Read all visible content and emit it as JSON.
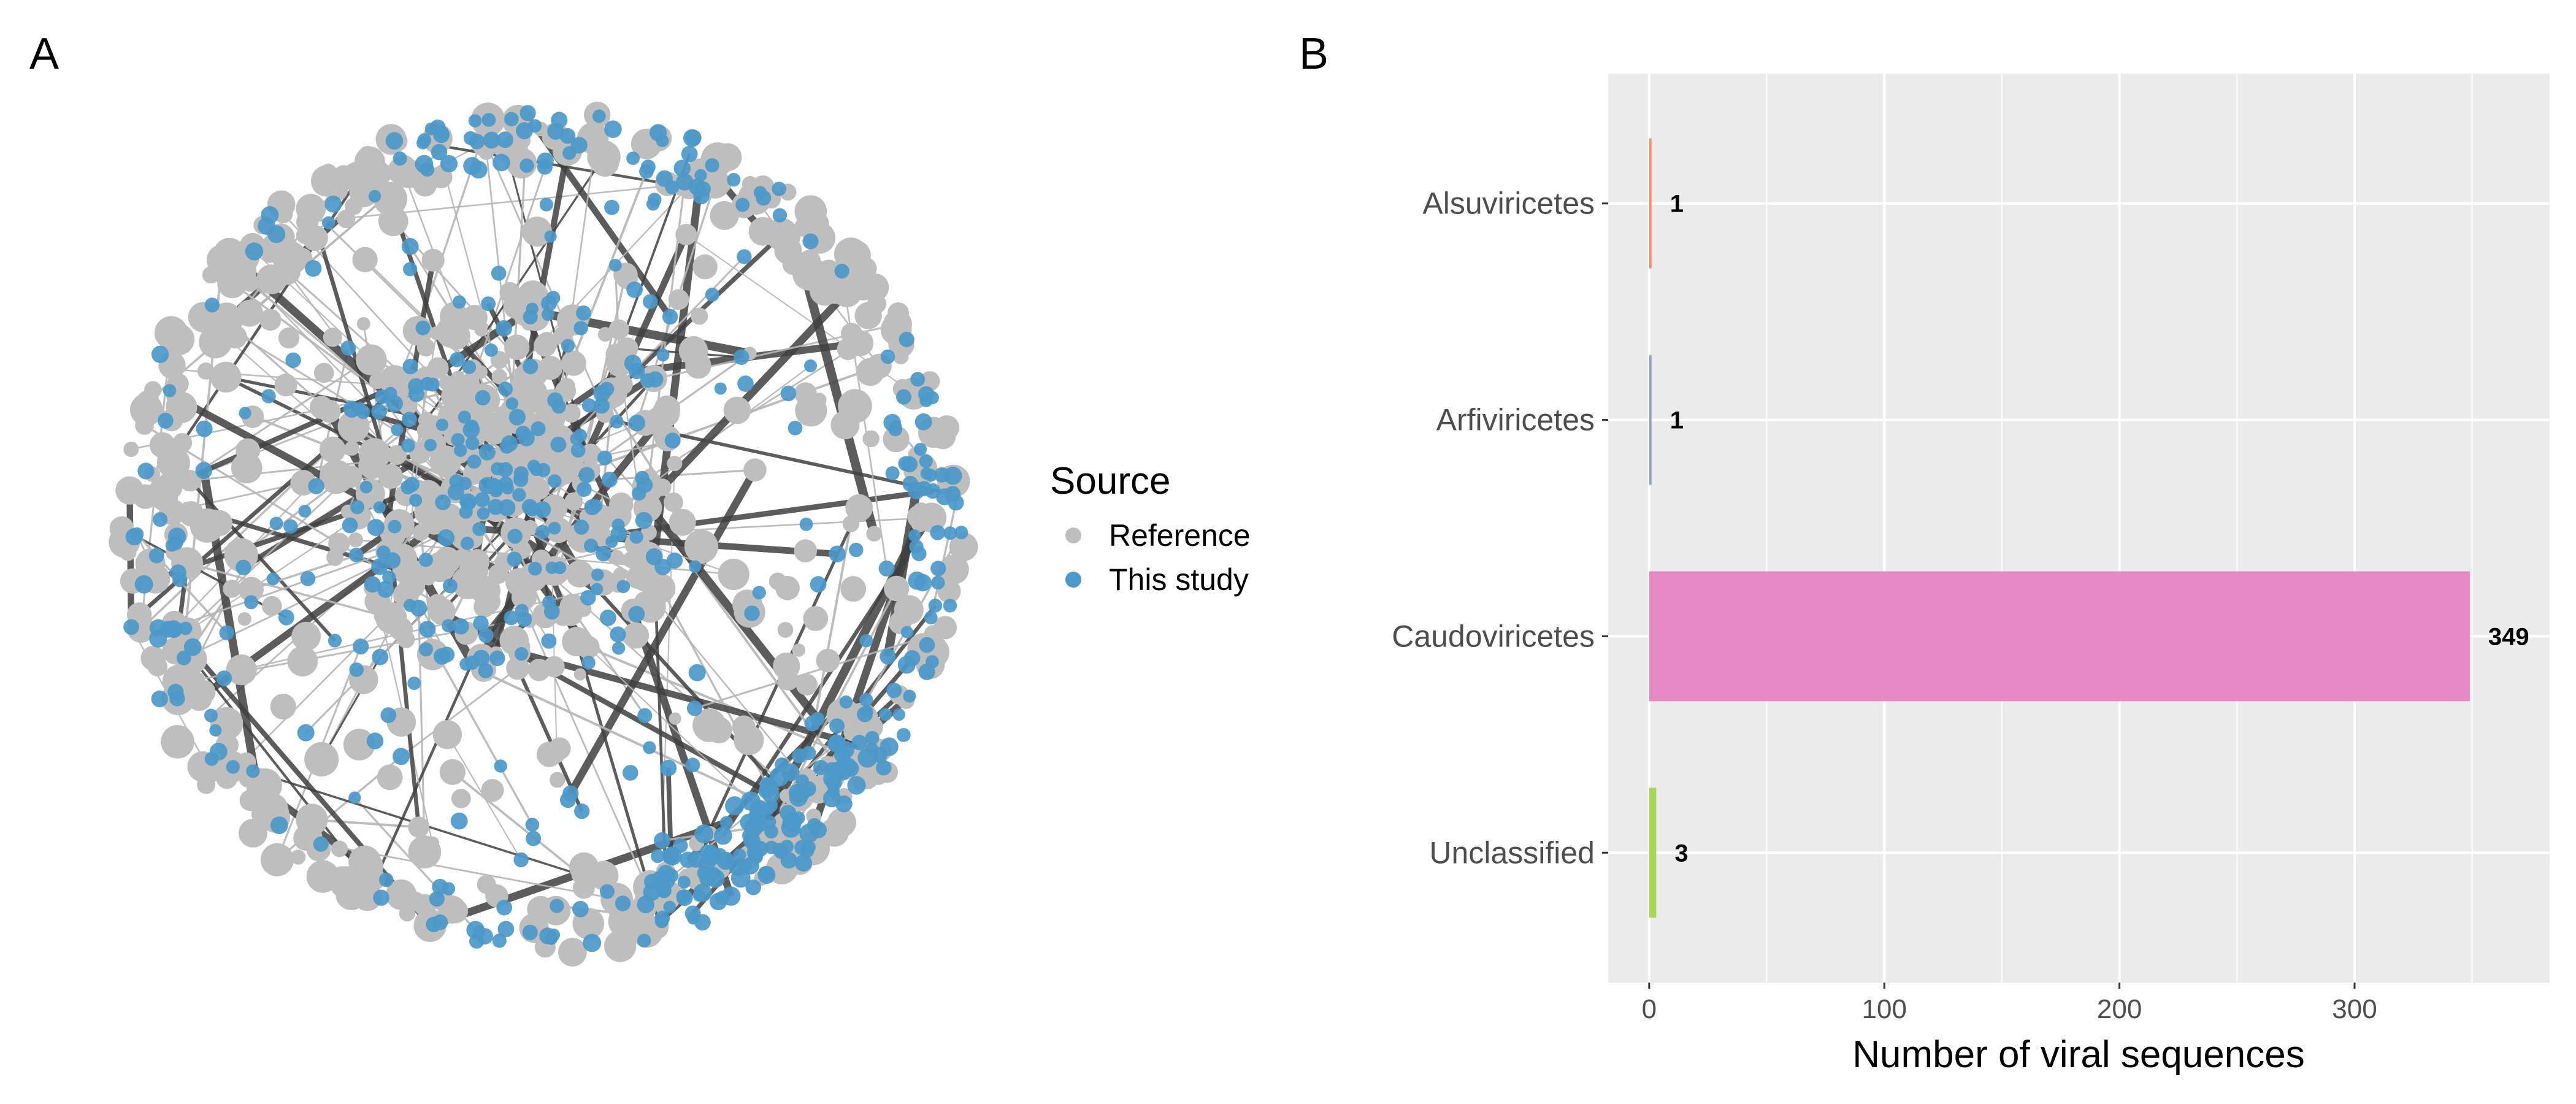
{
  "panel_labels": {
    "a": "A",
    "b": "B"
  },
  "network": {
    "legend": {
      "title": "Source",
      "items": [
        {
          "label": "Reference",
          "color": "#bebebe"
        },
        {
          "label": "This study",
          "color": "#4b98c9"
        }
      ]
    },
    "colors": {
      "edge_light": "#b5b5b5",
      "edge_dark": "#404040"
    }
  },
  "chart_data": {
    "type": "bar",
    "orientation": "horizontal",
    "categories": [
      "Alsuviricetes",
      "Arfiviricetes",
      "Caudoviricetes",
      "Unclassified"
    ],
    "values": [
      1,
      1,
      349,
      3
    ],
    "value_labels": [
      "1",
      "1",
      "349",
      "3"
    ],
    "colors": [
      "#fc8d62",
      "#8da0cb",
      "#e78ac3",
      "#a6d854"
    ],
    "xlabel": "Number of viral sequences",
    "ylabel": "",
    "xlim": [
      -17.45,
      382.95
    ],
    "xticks": [
      0,
      100,
      200,
      300
    ],
    "xtick_labels": [
      "0",
      "100",
      "200",
      "300"
    ],
    "grid": true,
    "panel_background": "#ebebeb",
    "grid_color": "#ffffff"
  }
}
